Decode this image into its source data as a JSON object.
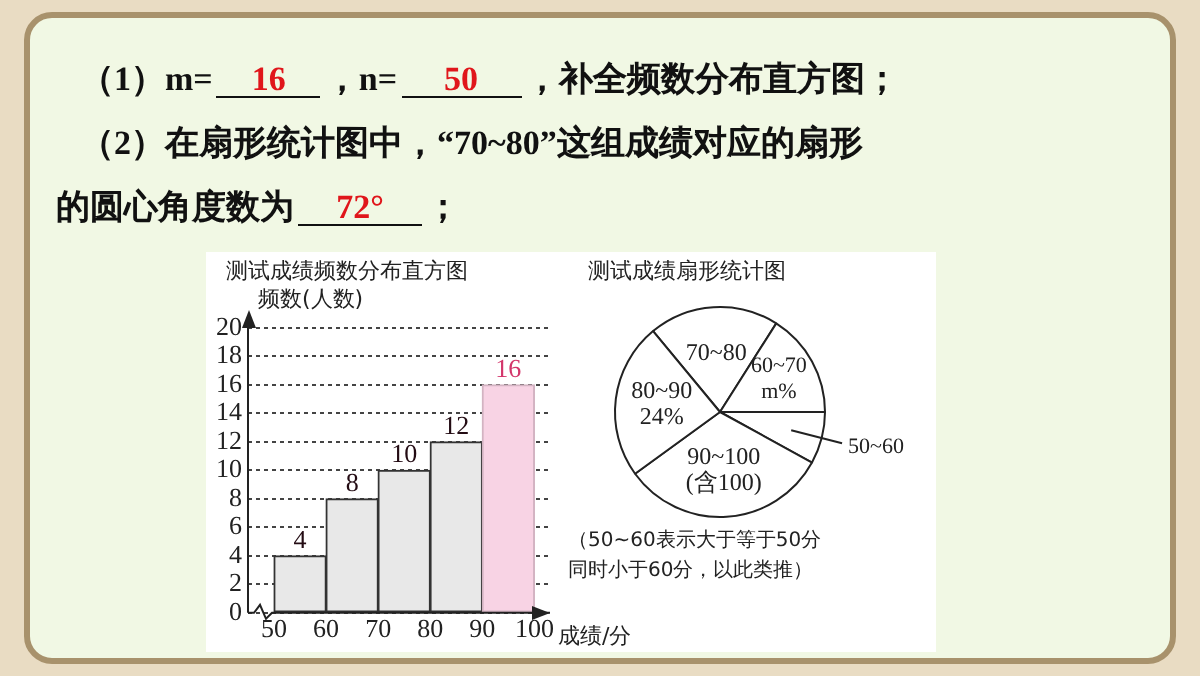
{
  "chart_data": [
    {
      "type": "other",
      "annotations": [
        "（1）m=",
        "16",
        "，n=",
        "50",
        "，补全频数分布直方图；",
        "（2）在扇形统计图中，“70~80”这组成绩对应的扇形",
        "的圆心角度数为",
        "72°",
        "；"
      ]
    },
    {
      "type": "histogram",
      "title": "测试成绩频数分布直方图",
      "ylabel": "频数(人数)",
      "xlabel": "成绩/分",
      "bins": [
        50,
        60,
        70,
        80,
        90,
        100
      ],
      "values": [
        4,
        8,
        10,
        12,
        16
      ],
      "colors": [
        "#e8e8e8",
        "#e8e8e8",
        "#e8e8e8",
        "#e8e8e8",
        "#f8d3e4"
      ],
      "xlim": [
        45,
        103
      ],
      "xticks": [
        50,
        60,
        70,
        80,
        90,
        100
      ],
      "ylim": [
        0,
        20
      ],
      "yticks": [
        0,
        2,
        4,
        6,
        8,
        10,
        12,
        14,
        16,
        18,
        20
      ],
      "grid": "y",
      "data_labels": true
    },
    {
      "type": "pie",
      "title": "测试成绩扇形统计图",
      "categories": [
        "70~80",
        "60~70",
        "50~60",
        "90~100",
        "80~90"
      ],
      "values": [
        20,
        16,
        8,
        32,
        24
      ],
      "colors": [
        "#ffffff",
        "#ffffff",
        "#ffffff",
        "#ffffff",
        "#ffffff"
      ],
      "value_labels": [
        null,
        "m%",
        null,
        null,
        "24%"
      ],
      "annotations": [
        {
          "text": "(含100)",
          "x": "90~100"
        },
        "（50~60表示大于等于50分",
        "同时小于60分，以此类推）"
      ]
    }
  ]
}
